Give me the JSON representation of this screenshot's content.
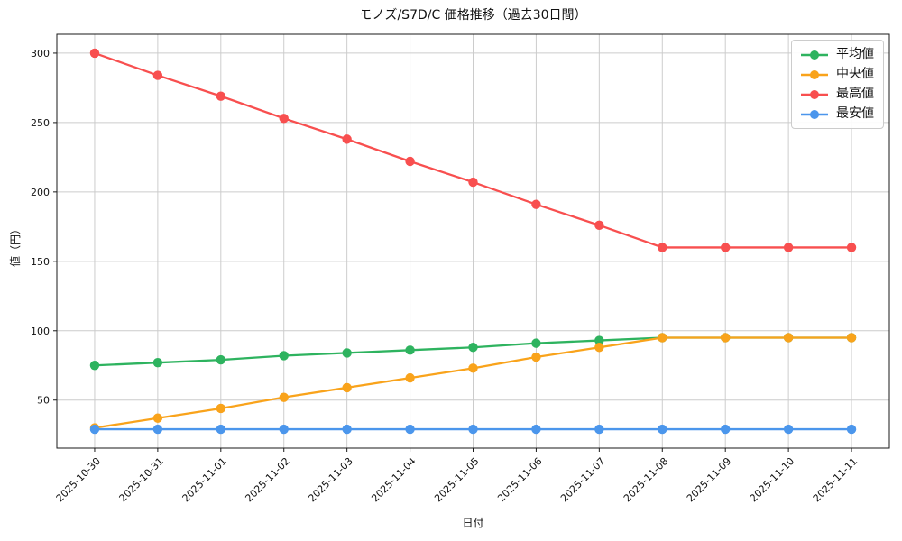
{
  "chart": {
    "title": "モノズ/S7D/C 価格推移（過去30日間）",
    "xlabel": "日付",
    "ylabel": "値（円）"
  },
  "chart_data": {
    "type": "line",
    "title": "モノズ/S7D/C 価格推移（過去30日間）",
    "xlabel": "日付",
    "ylabel": "値（円）",
    "categories": [
      "2025-10-30",
      "2025-10-31",
      "2025-11-01",
      "2025-11-02",
      "2025-11-03",
      "2025-11-04",
      "2025-11-05",
      "2025-11-06",
      "2025-11-07",
      "2025-11-08",
      "2025-11-09",
      "2025-11-10",
      "2025-11-11"
    ],
    "series": [
      {
        "name": "平均値",
        "color": "#2eb35f",
        "values": [
          75,
          77,
          79,
          82,
          84,
          86,
          88,
          91,
          93,
          95,
          95,
          95,
          95
        ]
      },
      {
        "name": "中央値",
        "color": "#f9a31b",
        "values": [
          30,
          37,
          44,
          52,
          59,
          66,
          73,
          81,
          88,
          95,
          95,
          95,
          95
        ]
      },
      {
        "name": "最高値",
        "color": "#f84f4f",
        "values": [
          300,
          284,
          269,
          253,
          238,
          222,
          207,
          191,
          176,
          160,
          160,
          160,
          160
        ]
      },
      {
        "name": "最安値",
        "color": "#4b96ec",
        "values": [
          29,
          29,
          29,
          29,
          29,
          29,
          29,
          29,
          29,
          29,
          29,
          29,
          29
        ]
      }
    ],
    "yticks": [
      50,
      100,
      150,
      200,
      250,
      300
    ],
    "ylim": [
      15.4,
      313.6
    ],
    "grid": true,
    "grid_color": "#cccccc",
    "spine_color": "#1a1a1a",
    "legend_position": "upper right",
    "legend": [
      "平均値",
      "中央値",
      "最高値",
      "最安値"
    ]
  }
}
